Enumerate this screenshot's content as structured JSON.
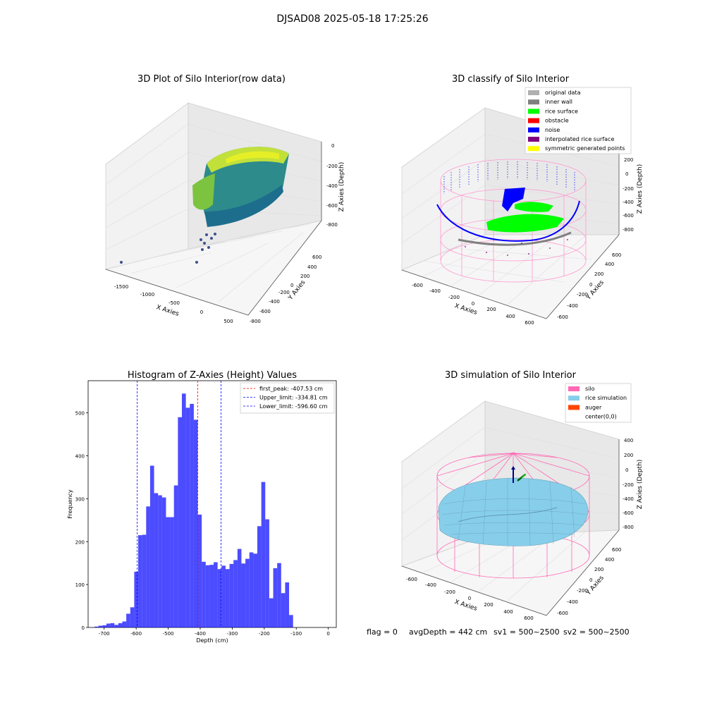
{
  "suptitle": "DJSAD08 2025-05-18 17:25:26",
  "footer": {
    "flag": "flag = 0",
    "avg_depth": "avgDepth = 442 cm",
    "sv1": "sv1 = 500~2500",
    "sv2": "sv2 = 500~2500"
  },
  "colors": {
    "original": "#b0b0b0",
    "inner_wall": "#808080",
    "rice_surface": "#00ff00",
    "obstacle": "#ff0000",
    "noise": "#0000ff",
    "interpolated": "#800080",
    "symmetric": "#ffff00",
    "silo": "#ff69b4",
    "rice_sim": "#87ceeb",
    "auger": "#ff4500",
    "hist_bar": "#0000ff",
    "first_peak": "#ff0000",
    "limit": "#0000ff"
  },
  "panel1": {
    "title": "3D Plot of Silo Interior(row data)",
    "x_label": "X Axies",
    "y_label": "Y Axies",
    "z_label": "Z Axies (Depth)",
    "x_ticks": [
      "-1500",
      "-1000",
      "-500",
      "0",
      "500"
    ],
    "y_ticks": [
      "600",
      "400",
      "200",
      "0",
      "-200",
      "-400",
      "-600",
      "-800"
    ],
    "z_ticks": [
      "0",
      "-200",
      "-400",
      "-600",
      "-800"
    ]
  },
  "panel2": {
    "title": "3D classify of Silo Interior",
    "x_label": "X Axies",
    "y_label": "Y Axies",
    "z_label": "Z Axies (Depth)",
    "x_ticks": [
      "-600",
      "-400",
      "-200",
      "0",
      "200",
      "400",
      "600"
    ],
    "y_ticks": [
      "600",
      "400",
      "200",
      "0",
      "-200",
      "-400",
      "-600"
    ],
    "z_ticks": [
      "200",
      "0",
      "-200",
      "-400",
      "-600",
      "-800"
    ],
    "legend": [
      {
        "label": "original data",
        "color_key": "original"
      },
      {
        "label": "inner wall",
        "color_key": "inner_wall"
      },
      {
        "label": "rice surface",
        "color_key": "rice_surface"
      },
      {
        "label": "obstacle",
        "color_key": "obstacle"
      },
      {
        "label": "noise",
        "color_key": "noise"
      },
      {
        "label": "interpolated rice surface",
        "color_key": "interpolated"
      },
      {
        "label": "symmetric generated points",
        "color_key": "symmetric"
      }
    ]
  },
  "panel4": {
    "title": "3D simulation of Silo Interior",
    "x_label": "X Axies",
    "y_label": "Y Axies",
    "z_label": "Z Axies (Depth)",
    "x_ticks": [
      "-600",
      "-400",
      "-200",
      "0",
      "200",
      "400",
      "600"
    ],
    "y_ticks": [
      "600",
      "400",
      "200",
      "0",
      "-200",
      "-400",
      "-600"
    ],
    "z_ticks": [
      "400",
      "200",
      "0",
      "-200",
      "-400",
      "-600",
      "-800"
    ],
    "legend": [
      {
        "label": "silo",
        "color_key": "silo"
      },
      {
        "label": "rice simulation",
        "color_key": "rice_sim"
      },
      {
        "label": "auger",
        "color_key": "auger"
      },
      {
        "label": "center(0,0)",
        "color_key": ""
      }
    ]
  },
  "chart_data": {
    "type": "bar",
    "title": "Histogram of Z-Axies (Height) Values",
    "xlabel": "Depth (cm)",
    "ylabel": "Frequency",
    "xlim": [
      -750,
      25
    ],
    "ylim": [
      0,
      575
    ],
    "x_ticks": [
      -700,
      -600,
      -500,
      -400,
      -300,
      -200,
      -100,
      0
    ],
    "y_ticks": [
      0,
      100,
      200,
      300,
      400,
      500
    ],
    "bin_start": -730,
    "bin_width": 12.4,
    "values": [
      2,
      4,
      5,
      9,
      10,
      6,
      10,
      14,
      32,
      47,
      130,
      215,
      216,
      282,
      377,
      313,
      308,
      303,
      257,
      257,
      331,
      490,
      545,
      512,
      521,
      484,
      263,
      153,
      145,
      146,
      152,
      136,
      144,
      136,
      148,
      157,
      183,
      149,
      160,
      175,
      172,
      236,
      339,
      252,
      68,
      138,
      150,
      80,
      105,
      29
    ],
    "vlines": [
      {
        "label": "first_peak: -407.53 cm",
        "x": -407.53,
        "color_key": "first_peak"
      },
      {
        "label": "Upper_limit: -334.81 cm",
        "x": -334.81,
        "color_key": "limit"
      },
      {
        "label": "Lower_limit: -596.60 cm",
        "x": -596.6,
        "color_key": "limit"
      }
    ]
  }
}
